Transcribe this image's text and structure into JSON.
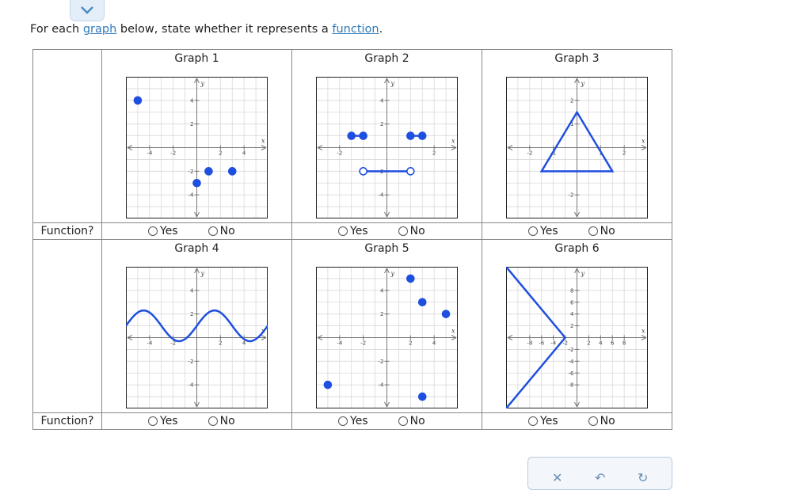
{
  "prompt": {
    "before": "For each ",
    "link1": "graph",
    "middle": " below, state whether it represents a ",
    "link2": "function",
    "after": "."
  },
  "row_label": "Function?",
  "options": {
    "yes": "Yes",
    "no": "No"
  },
  "graphs": [
    {
      "title": "Graph 1"
    },
    {
      "title": "Graph 2"
    },
    {
      "title": "Graph 3"
    },
    {
      "title": "Graph 4"
    },
    {
      "title": "Graph 5"
    },
    {
      "title": "Graph 6"
    }
  ],
  "axis_labels": {
    "x": "x",
    "y": "y"
  },
  "colors": {
    "accent": "#2f7ab8",
    "plot": "#1f4fe0",
    "grid": "#d9d9d9",
    "axis": "#777777"
  }
}
